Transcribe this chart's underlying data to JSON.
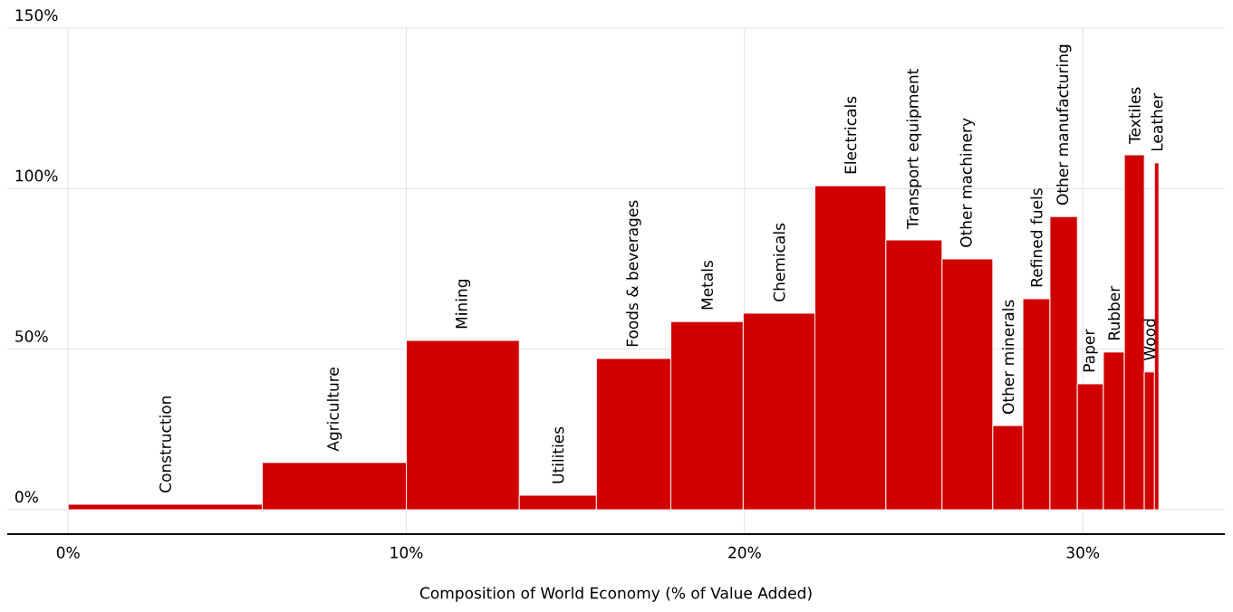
{
  "chart_data": {
    "type": "histogram",
    "xlabel": "Composition of World Economy (% of Value Added)",
    "bins": [
      0,
      5.74,
      10.0,
      13.34,
      15.62,
      17.82,
      19.96,
      22.08,
      24.18,
      25.84,
      27.34,
      28.23,
      29.03,
      29.84,
      30.61,
      31.23,
      31.82,
      32.12,
      32.25
    ],
    "values": [
      1.7,
      14.7,
      52.7,
      4.5,
      47.1,
      58.6,
      61.2,
      100.9,
      84.0,
      78.1,
      26.2,
      65.7,
      91.3,
      39.2,
      49.1,
      110.5,
      42.9,
      108.0
    ],
    "color": "#d00000",
    "xlim": [
      -1.8,
      34.2
    ],
    "ylim": [
      -7.6,
      150
    ],
    "xticks": [
      {
        "value": 0,
        "label": "0%"
      },
      {
        "value": 10,
        "label": "10%"
      },
      {
        "value": 20,
        "label": "20%"
      },
      {
        "value": 30,
        "label": "30%"
      }
    ],
    "yticks": [
      {
        "value": 0,
        "label": "0%"
      },
      {
        "value": 50,
        "label": "50%"
      },
      {
        "value": 100,
        "label": "100%"
      },
      {
        "value": 150,
        "label": "150%"
      }
    ],
    "grid": true,
    "annotations": [
      {
        "text": "Construction",
        "x": 2.87,
        "y": 1.7
      },
      {
        "text": "Agriculture",
        "x": 7.87,
        "y": 14.7
      },
      {
        "text": "Mining",
        "x": 11.67,
        "y": 52.7
      },
      {
        "text": "Utilities",
        "x": 14.48,
        "y": 4.5
      },
      {
        "text": "Foods & beverages",
        "x": 16.72,
        "y": 47.1
      },
      {
        "text": "Metals",
        "x": 18.89,
        "y": 58.6
      },
      {
        "text": "Chemicals",
        "x": 21.02,
        "y": 61.2
      },
      {
        "text": "Electricals",
        "x": 23.13,
        "y": 100.9
      },
      {
        "text": "Transport equipment",
        "x": 25.01,
        "y": 84.0
      },
      {
        "text": "Other machinery",
        "x": 26.59,
        "y": 78.1
      },
      {
        "text": "Other minerals",
        "x": 27.79,
        "y": 26.2
      },
      {
        "text": "Refined fuels",
        "x": 28.63,
        "y": 65.7
      },
      {
        "text": "Other manufacturing",
        "x": 29.44,
        "y": 91.3
      },
      {
        "text": "Paper",
        "x": 30.23,
        "y": 39.2
      },
      {
        "text": "Rubber",
        "x": 30.92,
        "y": 49.1
      },
      {
        "text": "Textiles",
        "x": 31.53,
        "y": 110.5
      },
      {
        "text": "Wood",
        "x": 31.97,
        "y": 42.9
      },
      {
        "text": "Leather",
        "x": 32.19,
        "y": 108.0
      }
    ]
  }
}
